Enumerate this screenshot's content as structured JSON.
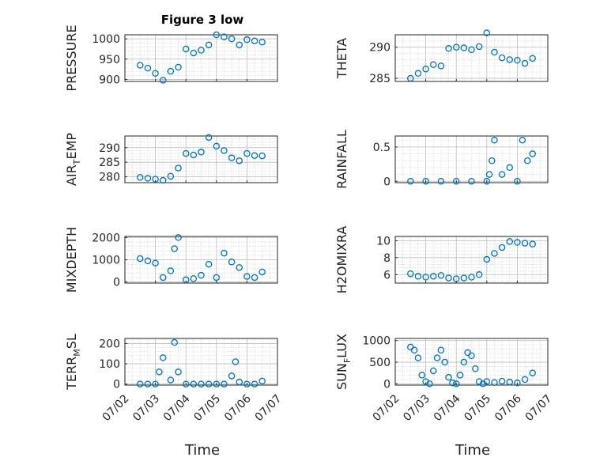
{
  "figure_title": "Figure 3 low",
  "xlabel": "Time",
  "marker_color": "#0072BD",
  "chart_data": [
    {
      "type": "scatter",
      "ylabel": "PRESSURE",
      "x_ticks": [
        "07/02",
        "07/03",
        "07/04",
        "07/05",
        "07/06",
        "07/07"
      ],
      "y_ticks": [
        900,
        950,
        1000
      ],
      "ylim": [
        895,
        1010
      ],
      "grid": true,
      "x": [
        "07/02 12:00",
        "07/02 18:00",
        "07/03 00:00",
        "07/03 06:00",
        "07/03 12:00",
        "07/03 18:00",
        "07/04 00:00",
        "07/04 06:00",
        "07/04 12:00",
        "07/04 18:00",
        "07/05 00:00",
        "07/05 06:00",
        "07/05 12:00",
        "07/05 18:00",
        "07/06 00:00",
        "07/06 06:00",
        "07/06 12:00"
      ],
      "y": [
        935,
        928,
        915,
        898,
        920,
        930,
        975,
        965,
        972,
        985,
        1010,
        1005,
        1000,
        985,
        998,
        995,
        992
      ]
    },
    {
      "type": "scatter",
      "ylabel": "THETA",
      "x_ticks": [
        "07/02",
        "07/03",
        "07/04",
        "07/05",
        "07/06",
        "07/07"
      ],
      "y_ticks": [
        285,
        290
      ],
      "ylim": [
        284.5,
        292
      ],
      "grid": true,
      "x": [
        "07/02 12:00",
        "07/02 18:00",
        "07/03 00:00",
        "07/03 06:00",
        "07/03 12:00",
        "07/03 18:00",
        "07/04 00:00",
        "07/04 06:00",
        "07/04 12:00",
        "07/04 18:00",
        "07/05 00:00",
        "07/05 06:00",
        "07/05 12:00",
        "07/05 18:00",
        "07/06 00:00",
        "07/06 06:00",
        "07/06 12:00"
      ],
      "y": [
        285.0,
        285.8,
        286.5,
        287.2,
        287.0,
        289.8,
        290.0,
        289.9,
        289.6,
        290.1,
        292.3,
        289.2,
        288.3,
        288.0,
        287.9,
        287.4,
        288.2
      ]
    },
    {
      "type": "scatter",
      "ylabel": "AIR_TEMP",
      "x_ticks": [
        "07/02",
        "07/03",
        "07/04",
        "07/05",
        "07/06",
        "07/07"
      ],
      "y_ticks": [
        280,
        285,
        290
      ],
      "ylim": [
        278,
        294
      ],
      "grid": true,
      "x": [
        "07/02 12:00",
        "07/02 18:00",
        "07/03 00:00",
        "07/03 06:00",
        "07/03 12:00",
        "07/03 18:00",
        "07/04 00:00",
        "07/04 06:00",
        "07/04 12:00",
        "07/04 18:00",
        "07/05 00:00",
        "07/05 06:00",
        "07/05 12:00",
        "07/05 18:00",
        "07/06 00:00",
        "07/06 06:00",
        "07/06 12:00"
      ],
      "y": [
        279.8,
        279.5,
        279.2,
        278.8,
        280.2,
        283.0,
        288.0,
        287.5,
        288.5,
        293.5,
        290.5,
        289.0,
        286.5,
        285.5,
        288.0,
        287.3,
        287.2
      ]
    },
    {
      "type": "scatter",
      "ylabel": "RAINFALL",
      "x_ticks": [
        "07/02",
        "07/03",
        "07/04",
        "07/05",
        "07/06",
        "07/07"
      ],
      "y_ticks": [
        0,
        0.5
      ],
      "ylim": [
        -0.02,
        0.66
      ],
      "grid": true,
      "x": [
        "07/02 12:00",
        "07/03 00:00",
        "07/03 12:00",
        "07/04 00:00",
        "07/04 12:00",
        "07/05 00:00",
        "07/05 02:00",
        "07/05 04:00",
        "07/05 06:00",
        "07/05 12:00",
        "07/05 18:00",
        "07/06 00:00",
        "07/06 04:00",
        "07/06 08:00",
        "07/06 12:00"
      ],
      "y": [
        0,
        0,
        0,
        0,
        0,
        0,
        0.1,
        0.3,
        0.6,
        0.1,
        0.2,
        0,
        0.6,
        0.3,
        0.4
      ]
    },
    {
      "type": "scatter",
      "ylabel": "MIXDEPTH",
      "x_ticks": [
        "07/02",
        "07/03",
        "07/04",
        "07/05",
        "07/06",
        "07/07"
      ],
      "y_ticks": [
        0,
        1000,
        2000
      ],
      "ylim": [
        -50,
        2050
      ],
      "grid": true,
      "x": [
        "07/02 12:00",
        "07/02 18:00",
        "07/03 00:00",
        "07/03 06:00",
        "07/03 12:00",
        "07/03 15:00",
        "07/03 18:00",
        "07/04 00:00",
        "07/04 06:00",
        "07/04 12:00",
        "07/04 18:00",
        "07/05 00:00",
        "07/05 06:00",
        "07/05 12:00",
        "07/05 18:00",
        "07/06 00:00",
        "07/06 06:00",
        "07/06 12:00"
      ],
      "y": [
        1050,
        950,
        850,
        200,
        500,
        1500,
        2000,
        100,
        150,
        300,
        800,
        200,
        1300,
        900,
        650,
        250,
        200,
        450
      ]
    },
    {
      "type": "scatter",
      "ylabel": "H2OMIXRA",
      "x_ticks": [
        "07/02",
        "07/03",
        "07/04",
        "07/05",
        "07/06",
        "07/07"
      ],
      "y_ticks": [
        6,
        8,
        10
      ],
      "ylim": [
        5,
        10.5
      ],
      "grid": true,
      "x": [
        "07/02 12:00",
        "07/02 18:00",
        "07/03 00:00",
        "07/03 06:00",
        "07/03 12:00",
        "07/03 18:00",
        "07/04 00:00",
        "07/04 06:00",
        "07/04 12:00",
        "07/04 18:00",
        "07/05 00:00",
        "07/05 06:00",
        "07/05 12:00",
        "07/05 18:00",
        "07/06 00:00",
        "07/06 06:00",
        "07/06 12:00"
      ],
      "y": [
        6.1,
        5.8,
        5.7,
        5.8,
        5.9,
        5.6,
        5.5,
        5.6,
        5.7,
        6.0,
        7.8,
        8.5,
        9.2,
        9.9,
        9.8,
        9.7,
        9.6
      ]
    },
    {
      "type": "scatter",
      "ylabel": "TERR_MSL",
      "x_ticks": [
        "07/02",
        "07/03",
        "07/04",
        "07/05",
        "07/06",
        "07/07"
      ],
      "y_ticks": [
        0,
        100,
        200
      ],
      "ylim": [
        -5,
        225
      ],
      "grid": true,
      "x": [
        "07/02 12:00",
        "07/02 18:00",
        "07/03 00:00",
        "07/03 03:00",
        "07/03 06:00",
        "07/03 12:00",
        "07/03 15:00",
        "07/03 18:00",
        "07/04 00:00",
        "07/04 06:00",
        "07/04 12:00",
        "07/04 18:00",
        "07/05 00:00",
        "07/05 06:00",
        "07/05 12:00",
        "07/05 15:00",
        "07/05 18:00",
        "07/06 00:00",
        "07/06 06:00",
        "07/06 12:00"
      ],
      "y": [
        0,
        0,
        0,
        60,
        130,
        20,
        205,
        60,
        0,
        0,
        0,
        0,
        0,
        0,
        40,
        110,
        10,
        0,
        0,
        15
      ]
    },
    {
      "type": "scatter",
      "ylabel": "SUN_FLUX",
      "x_ticks": [
        "07/02",
        "07/03",
        "07/04",
        "07/05",
        "07/06",
        "07/07"
      ],
      "y_ticks": [
        0,
        500,
        1000
      ],
      "ylim": [
        -30,
        1050
      ],
      "grid": true,
      "x": [
        "07/02 12:00",
        "07/02 15:00",
        "07/02 18:00",
        "07/02 21:00",
        "07/03 00:00",
        "07/03 03:00",
        "07/03 06:00",
        "07/03 09:00",
        "07/03 12:00",
        "07/03 15:00",
        "07/03 18:00",
        "07/03 21:00",
        "07/04 00:00",
        "07/04 03:00",
        "07/04 06:00",
        "07/04 09:00",
        "07/04 12:00",
        "07/04 15:00",
        "07/04 18:00",
        "07/04 21:00",
        "07/05 00:00",
        "07/05 06:00",
        "07/05 12:00",
        "07/05 18:00",
        "07/06 00:00",
        "07/06 06:00",
        "07/06 12:00"
      ],
      "y": [
        850,
        780,
        600,
        200,
        50,
        0,
        300,
        600,
        780,
        500,
        150,
        20,
        0,
        200,
        500,
        720,
        650,
        350,
        50,
        0,
        50,
        30,
        60,
        40,
        20,
        100,
        250
      ]
    }
  ]
}
